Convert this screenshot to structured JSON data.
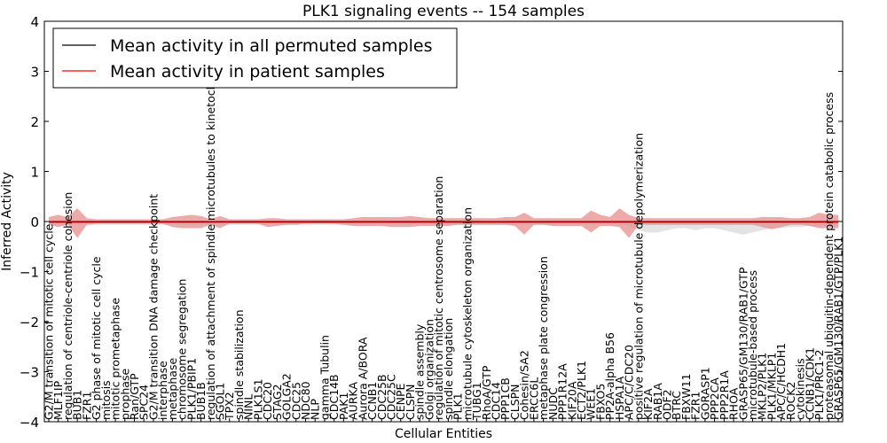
{
  "chart_data": {
    "type": "line",
    "title": "PLK1 signaling events -- 154 samples",
    "xlabel": "Cellular Entities",
    "ylabel": "Inferred Activity",
    "ylim": [
      -4,
      4
    ],
    "yticks": [
      4,
      3,
      2,
      1,
      0,
      -1,
      -2,
      -3,
      -4
    ],
    "ytick_labels": [
      "4",
      "3",
      "2",
      "1",
      "0",
      "−1",
      "−2",
      "−3",
      "−4"
    ],
    "legend_position": "top-left",
    "colors": {
      "permuted": "#000000",
      "patient": "#ff0000",
      "patient_band": "#e88c8c",
      "permuted_band": "#c8c8c8"
    },
    "categories": [
      "G2/M transition of mitotic cell cycle",
      "MLF1IP",
      "regulation of centriole-centriole cohesion",
      "BUB1",
      "FZR1",
      "G2 phase of mitotic cell cycle",
      "mitosis",
      "mitotic prometaphase",
      "prophase",
      "Ran/GTP",
      "SPC24",
      "G2/M transition DNA damage checkpoint",
      "interphase",
      "metaphase",
      "chromosome segregation",
      "PLK1/PBIP1",
      "BUB1B",
      "regulation of attachment of spindle microtubules to kinetochore",
      "SGOL1",
      "TPX2",
      "spindle stabilization",
      "NINL",
      "PLK1S1",
      "CDC20",
      "STAG2",
      "GOLGA2",
      "CDC25",
      "NDC80",
      "NLP",
      "gamma Tubulin",
      "CDC14B",
      "PAK1",
      "AURKA",
      "Aurora A/BORA",
      "CCNB1",
      "CDC25B",
      "CDC25C",
      "CENPE",
      "CLSPN",
      "spindle assembly",
      "Golgi organization",
      "regulation of mitotic centrosome separation",
      "spindle elongation",
      "PLK1",
      "microtubule cytoskeleton organization",
      "TUBG1",
      "RhoA/GTP",
      "CDC14",
      "PPP1CB",
      "CLSPN",
      "Cohesin/SA2",
      "ERCC6L",
      "metaphase plate congression",
      "NUDC",
      "PPP1R12A",
      "KIF20A",
      "ECT2/PLK1",
      "WEE1",
      "FBXO5",
      "PP2A-alpha B56",
      "HSPA1A",
      "APC/C/CDC20",
      "positive regulation of microtubule depolymerization",
      "KIF2A",
      "RAB1A",
      "ODF2",
      "BTRC",
      "FBXW11",
      "FZR1",
      "GORASP1",
      "PPP2CA",
      "PPP2R1A",
      "RHOA",
      "GRASP65/GM130/RAB1/GTP",
      "microtubule-based process",
      "MKLP2/PLK1",
      "PLK1/MKLP1",
      "APC/C/HCDH1",
      "ROCK2",
      "cytokinesis",
      "CCNB1/CDK1",
      "PLK1/PRC1-2",
      "proteasomal ubiquitin-dependent protein catabolic process",
      "GRASP65/GM130/RAB1/GTP/PLK1"
    ],
    "series": [
      {
        "name": "Mean activity in all permuted samples",
        "color": "#000000",
        "values": [
          -0.01,
          -0.01,
          -0.01,
          -0.01,
          -0.01,
          -0.01,
          -0.01,
          -0.01,
          -0.01,
          -0.01,
          -0.01,
          -0.01,
          -0.01,
          -0.01,
          -0.01,
          -0.01,
          -0.01,
          -0.01,
          -0.01,
          -0.01,
          -0.01,
          -0.01,
          -0.01,
          -0.01,
          -0.01,
          -0.01,
          -0.01,
          -0.01,
          -0.01,
          -0.01,
          -0.01,
          -0.01,
          -0.01,
          -0.01,
          -0.01,
          -0.01,
          -0.01,
          -0.01,
          -0.01,
          -0.01,
          -0.01,
          -0.01,
          -0.01,
          -0.01,
          -0.01,
          -0.01,
          -0.01,
          -0.01,
          -0.01,
          -0.01,
          -0.01,
          -0.01,
          -0.01,
          -0.01,
          -0.01,
          -0.01,
          -0.01,
          -0.01,
          -0.01,
          -0.01,
          -0.01,
          -0.01,
          -0.01,
          -0.01,
          -0.01,
          -0.01,
          -0.01,
          -0.01,
          -0.01,
          -0.01,
          -0.01,
          -0.01,
          -0.01,
          -0.01,
          -0.01,
          -0.01,
          -0.01,
          -0.01,
          -0.01,
          -0.01,
          -0.01,
          -0.01,
          -0.01,
          -0.01
        ],
        "band_low": [
          -0.03,
          -0.03,
          -0.03,
          -0.03,
          -0.03,
          -0.03,
          -0.03,
          -0.03,
          -0.03,
          -0.03,
          -0.03,
          -0.03,
          -0.03,
          -0.03,
          -0.03,
          -0.03,
          -0.03,
          -0.03,
          -0.03,
          -0.03,
          -0.03,
          -0.03,
          -0.03,
          -0.03,
          -0.03,
          -0.03,
          -0.03,
          -0.03,
          -0.03,
          -0.03,
          -0.03,
          -0.03,
          -0.03,
          -0.03,
          -0.03,
          -0.03,
          -0.03,
          -0.03,
          -0.03,
          -0.03,
          -0.03,
          -0.03,
          -0.03,
          -0.03,
          -0.03,
          -0.03,
          -0.03,
          -0.03,
          -0.03,
          -0.03,
          -0.03,
          -0.03,
          -0.03,
          -0.03,
          -0.03,
          -0.03,
          -0.03,
          -0.03,
          -0.03,
          -0.03,
          -0.03,
          -0.04,
          -0.08,
          -0.1,
          -0.1,
          -0.08,
          -0.06,
          -0.06,
          -0.08,
          -0.06,
          -0.06,
          -0.08,
          -0.1,
          -0.12,
          -0.1,
          -0.08,
          -0.06,
          -0.06,
          -0.05,
          -0.05,
          -0.04,
          -0.04,
          -0.04,
          -0.04
        ],
        "band_high": [
          0.01,
          0.01,
          0.01,
          0.01,
          0.01,
          0.01,
          0.01,
          0.01,
          0.01,
          0.01,
          0.01,
          0.01,
          0.01,
          0.01,
          0.01,
          0.01,
          0.01,
          0.01,
          0.01,
          0.01,
          0.01,
          0.01,
          0.01,
          0.01,
          0.01,
          0.01,
          0.01,
          0.01,
          0.01,
          0.01,
          0.01,
          0.01,
          0.01,
          0.01,
          0.01,
          0.01,
          0.01,
          0.01,
          0.01,
          0.01,
          0.01,
          0.01,
          0.01,
          0.01,
          0.01,
          0.01,
          0.01,
          0.01,
          0.01,
          0.01,
          0.01,
          0.01,
          0.01,
          0.01,
          0.01,
          0.01,
          0.01,
          0.01,
          0.01,
          0.01,
          0.01,
          0.01,
          0.01,
          0.01,
          0.01,
          0.01,
          0.01,
          0.01,
          0.01,
          0.01,
          0.01,
          0.01,
          0.01,
          0.01,
          0.01,
          0.01,
          0.01,
          0.01,
          0.01,
          0.01,
          0.01,
          0.01,
          0.01,
          0.01
        ]
      },
      {
        "name": "Mean activity in patient samples",
        "color": "#ff0000",
        "values": [
          0.0,
          0.0,
          0.0,
          0.0,
          0.0,
          0.0,
          0.0,
          0.0,
          0.0,
          0.0,
          0.0,
          0.0,
          0.0,
          0.0,
          0.0,
          0.0,
          0.0,
          0.0,
          0.0,
          0.0,
          0.0,
          0.0,
          0.0,
          0.0,
          0.0,
          0.0,
          0.0,
          0.0,
          0.0,
          0.0,
          0.0,
          0.0,
          0.0,
          0.0,
          0.0,
          0.0,
          0.0,
          0.0,
          0.0,
          0.0,
          0.0,
          0.0,
          0.0,
          0.0,
          0.0,
          0.0,
          0.0,
          0.0,
          0.0,
          0.0,
          0.0,
          0.0,
          0.0,
          0.0,
          0.0,
          0.0,
          0.0,
          0.0,
          0.0,
          0.0,
          0.0,
          0.0,
          0.0,
          0.0,
          0.0,
          0.0,
          0.0,
          0.0,
          0.0,
          0.0,
          0.0,
          0.0,
          0.0,
          0.0,
          0.0,
          0.0,
          0.0,
          0.0,
          0.0,
          0.0,
          0.0,
          0.0,
          0.0,
          0.0
        ],
        "band_low": [
          -0.03,
          -0.05,
          -0.03,
          -0.15,
          -0.03,
          -0.02,
          -0.02,
          -0.02,
          -0.02,
          -0.02,
          -0.02,
          -0.02,
          -0.02,
          -0.05,
          -0.06,
          -0.06,
          -0.06,
          -0.03,
          -0.06,
          -0.02,
          -0.02,
          -0.02,
          -0.02,
          -0.05,
          -0.04,
          -0.03,
          -0.03,
          -0.02,
          -0.02,
          -0.02,
          -0.02,
          -0.03,
          -0.04,
          -0.04,
          -0.04,
          -0.04,
          -0.05,
          -0.05,
          -0.05,
          -0.04,
          -0.04,
          -0.04,
          -0.04,
          -0.03,
          -0.03,
          -0.03,
          -0.03,
          -0.03,
          -0.03,
          -0.04,
          -0.12,
          -0.03,
          -0.03,
          -0.04,
          -0.04,
          -0.04,
          -0.04,
          -0.1,
          -0.04,
          -0.04,
          -0.05,
          -0.15,
          -0.03,
          -0.03,
          -0.03,
          -0.03,
          -0.03,
          -0.03,
          -0.03,
          -0.03,
          -0.03,
          -0.03,
          -0.03,
          -0.03,
          -0.03,
          -0.05,
          -0.07,
          -0.05,
          -0.03,
          -0.03,
          -0.04,
          -0.06,
          -0.06,
          -0.06
        ],
        "band_high": [
          0.04,
          0.06,
          0.04,
          0.12,
          0.03,
          0.02,
          0.02,
          0.02,
          0.02,
          0.02,
          0.02,
          0.02,
          0.02,
          0.04,
          0.05,
          0.06,
          0.05,
          0.02,
          0.05,
          0.02,
          0.02,
          0.02,
          0.02,
          0.03,
          0.03,
          0.02,
          0.02,
          0.02,
          0.02,
          0.02,
          0.02,
          0.02,
          0.03,
          0.04,
          0.04,
          0.04,
          0.04,
          0.04,
          0.05,
          0.04,
          0.03,
          0.03,
          0.03,
          0.03,
          0.03,
          0.03,
          0.03,
          0.03,
          0.04,
          0.04,
          0.08,
          0.03,
          0.03,
          0.03,
          0.03,
          0.03,
          0.03,
          0.1,
          0.06,
          0.04,
          0.12,
          0.06,
          0.03,
          0.03,
          0.03,
          0.03,
          0.03,
          0.03,
          0.03,
          0.03,
          0.03,
          0.03,
          0.03,
          0.03,
          0.03,
          0.04,
          0.04,
          0.04,
          0.03,
          0.03,
          0.04,
          0.08,
          0.06,
          0.06
        ]
      }
    ]
  }
}
